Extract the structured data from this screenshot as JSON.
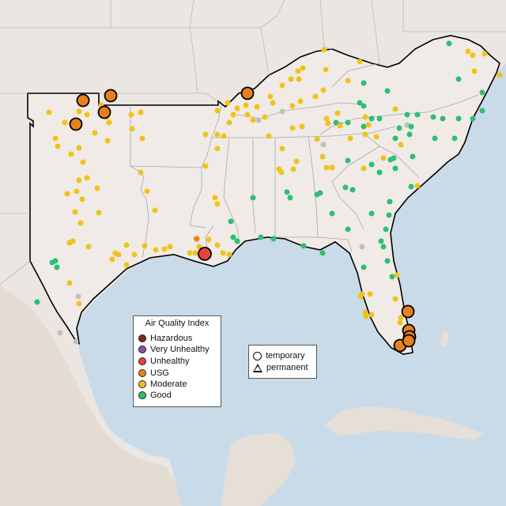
{
  "legend": {
    "title": "Air Quality Index",
    "categories": [
      {
        "label": "Hazardous",
        "color": "#7e2a1f"
      },
      {
        "label": "Very Unhealthy",
        "color": "#8f4fa3"
      },
      {
        "label": "Unhealthy",
        "color": "#e8433a"
      },
      {
        "label": "USG",
        "color": "#e8801f"
      },
      {
        "label": "Moderate",
        "color": "#f2c21a"
      },
      {
        "label": "Good",
        "color": "#2dbf73"
      }
    ]
  },
  "site_legend": {
    "temporary": "temporary",
    "permanent": "permanent"
  },
  "colors": {
    "water": "#c9dbe9",
    "land": "#ebe6e1",
    "mountain": "#ddd5cc",
    "region_fill": "#f0ebe7",
    "state_border": "#a8a8a8",
    "region_border": "#000000",
    "inactive_site": "#c0c0c0"
  }
}
